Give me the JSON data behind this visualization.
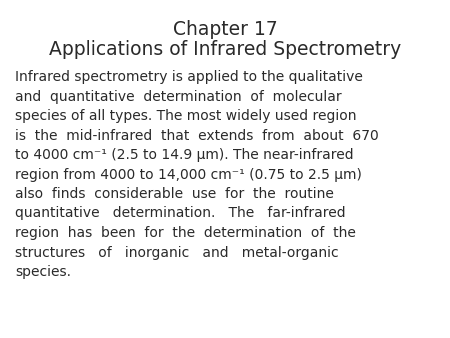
{
  "title_line1": "Chapter 17",
  "title_line2": "Applications of Infrared Spectrometry",
  "background_color": "#ffffff",
  "text_color": "#2a2a2a",
  "title_fontsize": 13.5,
  "body_fontsize": 10.0,
  "font_family": "DejaVu Sans",
  "body_lines": [
    "Infrared spectrometry is applied to the qualitative",
    "and  quantitative  determination  of  molecular",
    "species of all types. The most widely used region",
    "is  the  mid-infrared  that  extends  from  about  670",
    "to 4000 cm⁻¹ (2.5 to 14.9 μm). The near-infrared",
    "region from 4000 to 14,000 cm⁻¹ (0.75 to 2.5 μm)",
    "also  finds  considerable  use  for  the  routine",
    "quantitative   determination.   The   far-infrared",
    "region  has  been  for  the  determination  of  the",
    "structures   of   inorganic   and   metal-organic",
    "species."
  ]
}
